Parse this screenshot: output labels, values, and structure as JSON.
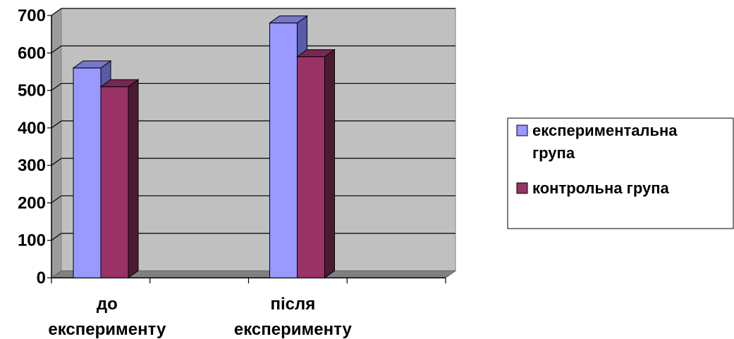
{
  "chart_data": {
    "type": "bar",
    "categories": [
      "до експерименту",
      "після експерименту"
    ],
    "category_lines": [
      [
        "до",
        "експерименту"
      ],
      [
        "після",
        "експерименту"
      ]
    ],
    "series": [
      {
        "name": "експериментальна група",
        "legend_lines": [
          "експериментальна",
          "група"
        ],
        "values": [
          560,
          680
        ],
        "color": "#9999FF",
        "side_color": "#5A5AA6",
        "top_color": "#7777CC"
      },
      {
        "name": "контрольна група",
        "legend_lines": [
          "контрольна група"
        ],
        "values": [
          510,
          590
        ],
        "color": "#993366",
        "side_color": "#4D1A33",
        "top_color": "#772850"
      }
    ],
    "yticks": [
      "0",
      "100",
      "200",
      "300",
      "400",
      "500",
      "600",
      "700"
    ],
    "ylim": [
      0,
      700
    ],
    "grid": true,
    "legend_position": "right",
    "plot_background": "#C0C0C0",
    "grid_color": "#000000"
  }
}
